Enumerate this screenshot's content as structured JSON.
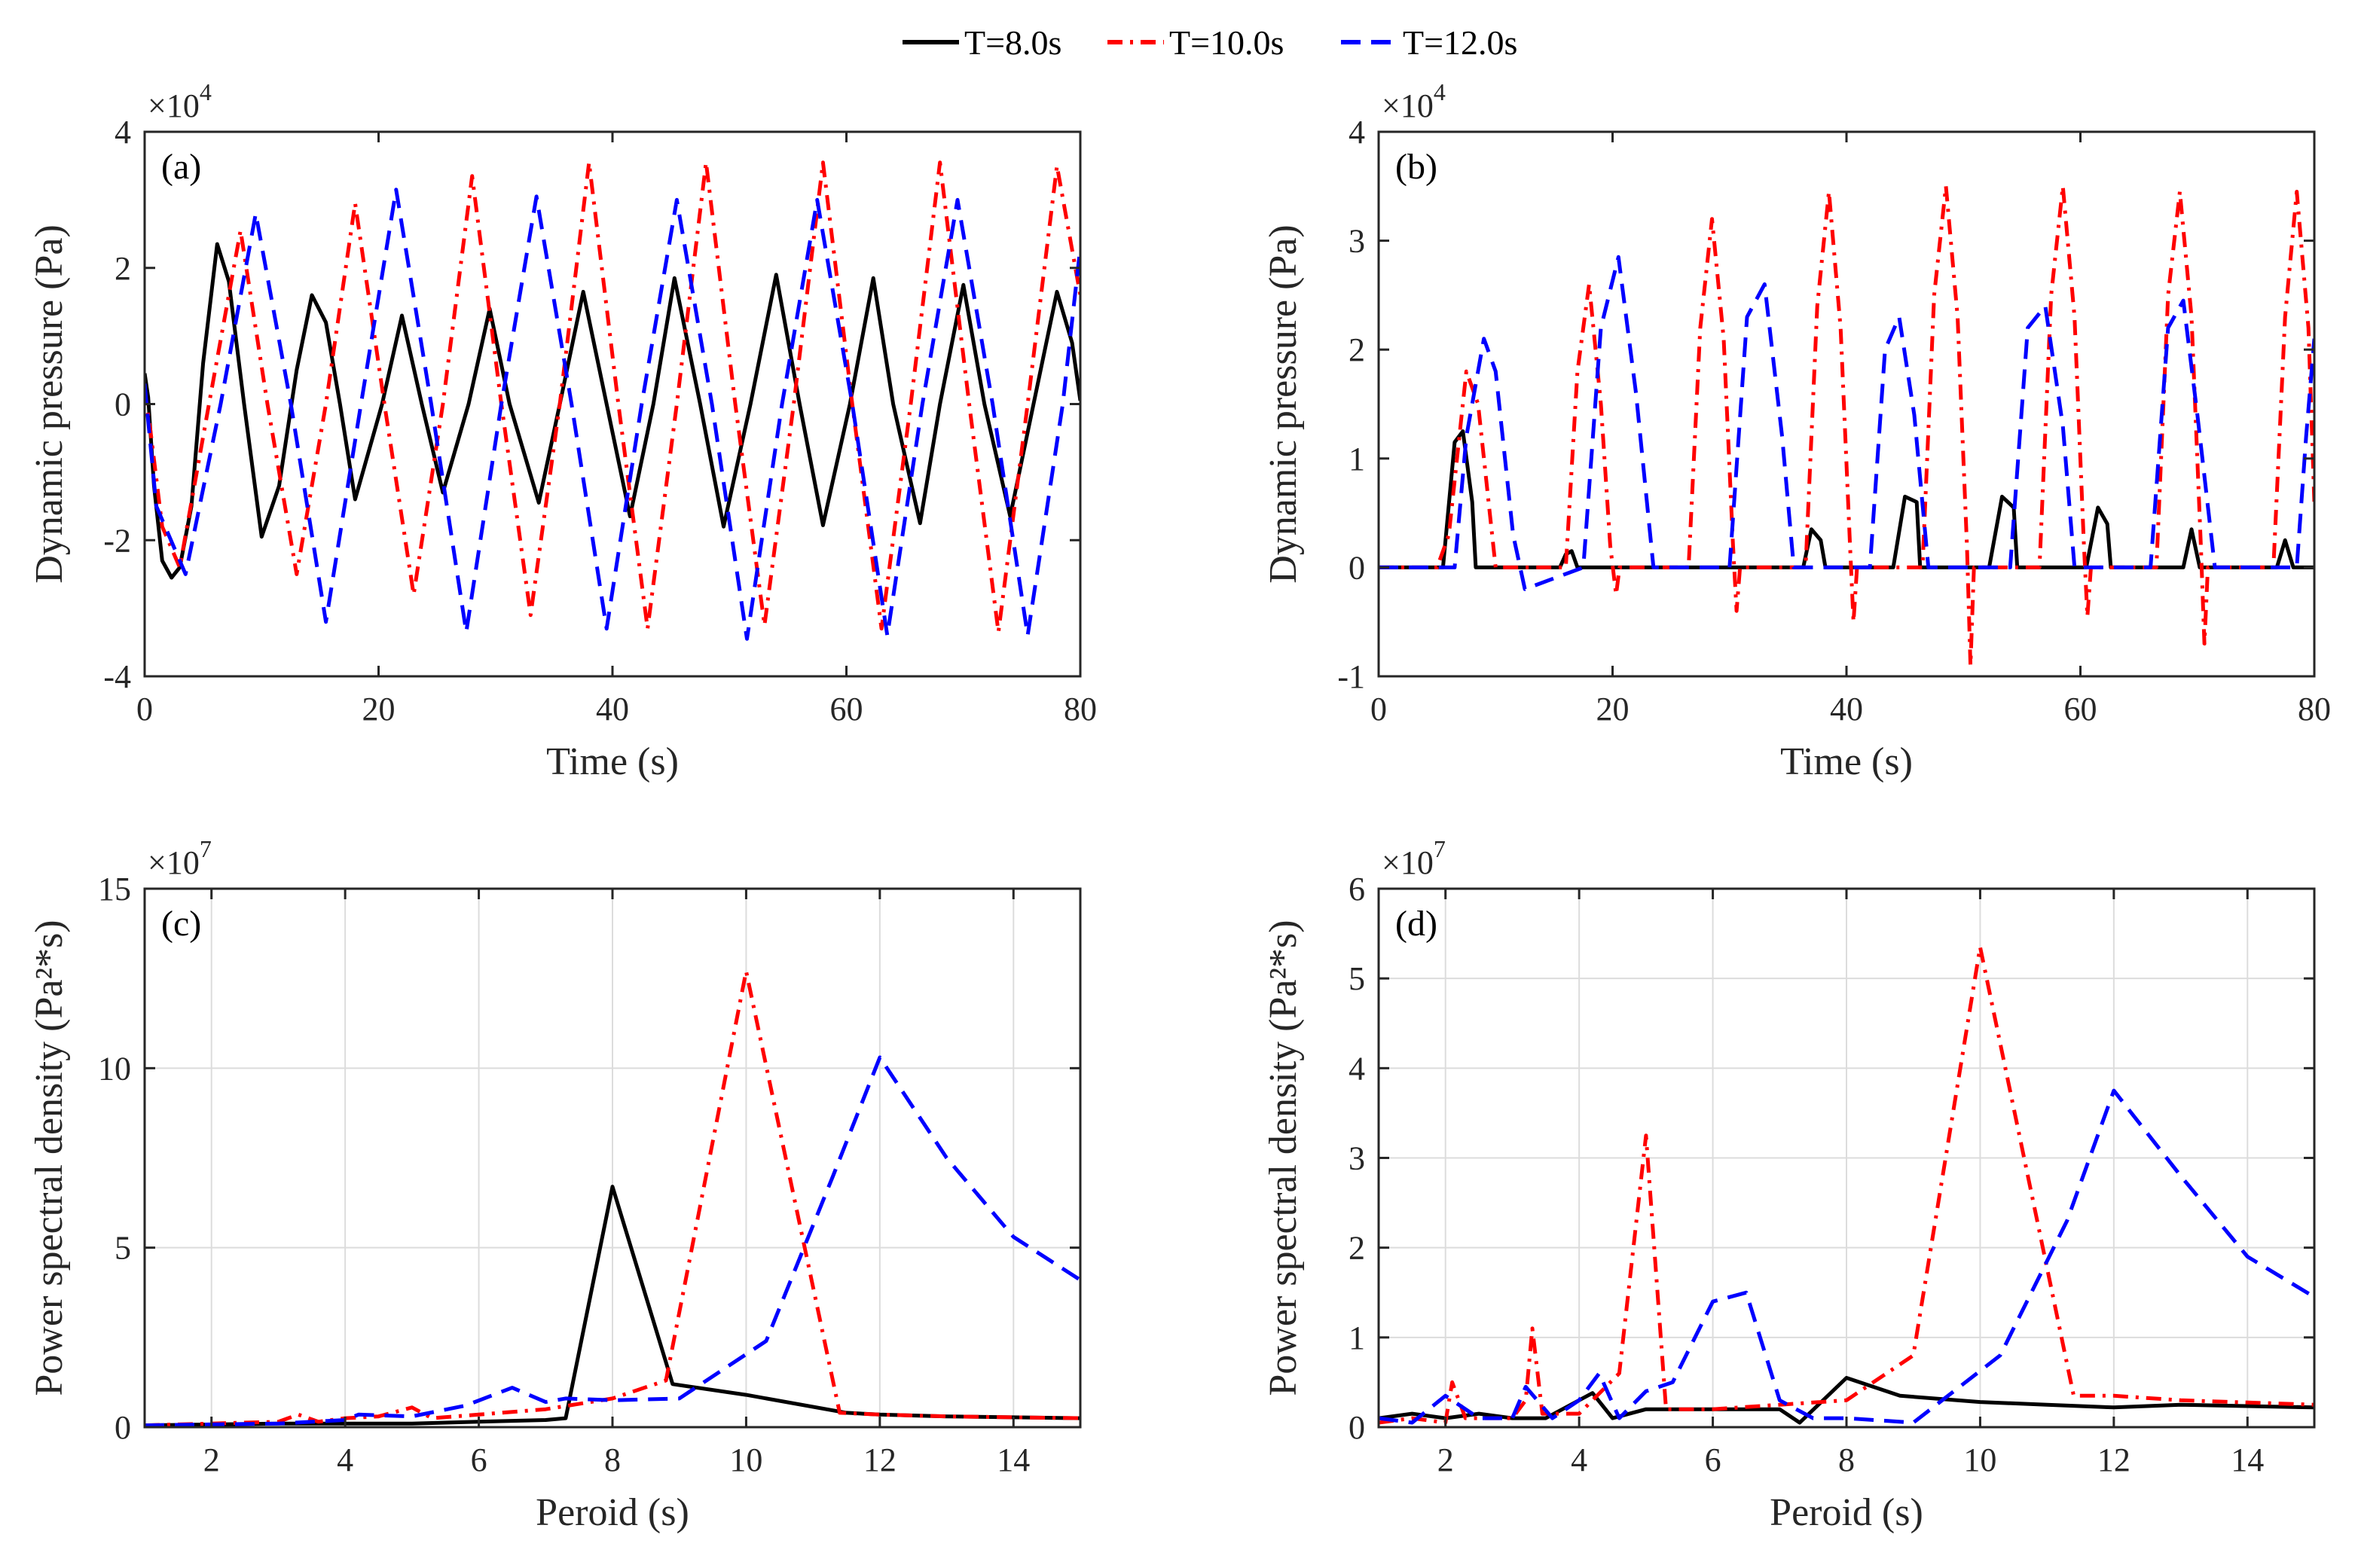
{
  "legend": {
    "items": [
      {
        "label": "T=8.0s",
        "color": "#000000",
        "dash": "solid"
      },
      {
        "label": "T=10.0s",
        "color": "#ff0000",
        "dash": "dashdot"
      },
      {
        "label": "T=12.0s",
        "color": "#0000ff",
        "dash": "dashed"
      }
    ]
  },
  "chart_data": [
    {
      "panel": "(a)",
      "type": "line",
      "xlabel": "Time (s)",
      "ylabel": "Dynamic pressure (Pa)",
      "exponent": "4",
      "xlim": [
        0,
        80
      ],
      "ylim": [
        -4,
        4
      ],
      "xticks": [
        0,
        20,
        40,
        60,
        80
      ],
      "yticks": [
        -4,
        -2,
        0,
        2,
        4
      ],
      "grid": false,
      "series": [
        {
          "name": "T=8.0s",
          "color": "#000000",
          "dash": "solid",
          "x": [
            0,
            0.3,
            0.8,
            1.5,
            2.3,
            3,
            4,
            5,
            6.2,
            7.2,
            8.5,
            10,
            11.5,
            13,
            14.3,
            15.5,
            16.7,
            18,
            20.3,
            22,
            23.7,
            25.5,
            27.7,
            29.5,
            31.2,
            33.7,
            35.5,
            37.5,
            39.5,
            41.5,
            43.5,
            45.3,
            47.5,
            49.5,
            51.8,
            54,
            56,
            58,
            60.3,
            62.3,
            64,
            66.3,
            68,
            70,
            71.8,
            74,
            76,
            78,
            79.3,
            80
          ],
          "y": [
            0.45,
            0.1,
            -1.2,
            -2.3,
            -2.55,
            -2.4,
            -1.5,
            0.6,
            2.35,
            1.8,
            0,
            -1.95,
            -1.2,
            0.5,
            1.6,
            1.2,
            0,
            -1.4,
            0,
            1.3,
            0,
            -1.3,
            0,
            1.4,
            0,
            -1.45,
            0,
            1.65,
            0,
            -1.65,
            0,
            1.85,
            0,
            -1.8,
            0,
            1.9,
            0,
            -1.78,
            0,
            1.85,
            0,
            -1.75,
            0,
            1.75,
            0,
            -1.65,
            0,
            1.65,
            0.9,
            0.05
          ]
        },
        {
          "name": "T=10.0s",
          "color": "#ff0000",
          "dash": "dashdot",
          "x": [
            0,
            0.5,
            1.5,
            3,
            5.5,
            8.2,
            10.5,
            13,
            15.5,
            18,
            20.5,
            23,
            25.5,
            28,
            30.5,
            33,
            35.5,
            38,
            40.5,
            43,
            45.5,
            48,
            50.5,
            53,
            55.5,
            58,
            60.5,
            63,
            65.5,
            68,
            70.5,
            73,
            75.5,
            78,
            80
          ],
          "y": [
            0.2,
            -0.4,
            -1.8,
            -2.4,
            0,
            2.55,
            0,
            -2.5,
            0,
            2.95,
            0,
            -2.8,
            0,
            3.35,
            0,
            -3.1,
            0,
            3.55,
            0,
            -3.3,
            0,
            3.55,
            0,
            -3.25,
            0,
            3.55,
            0,
            -3.3,
            0,
            3.55,
            0,
            -3.35,
            0,
            3.5,
            1.6
          ]
        },
        {
          "name": "T=12.0s",
          "color": "#0000ff",
          "dash": "dashed",
          "x": [
            0,
            1,
            3.5,
            6.5,
            9.5,
            12.5,
            15.5,
            18.5,
            21.5,
            24.5,
            27.5,
            30.5,
            33.5,
            36.5,
            39.5,
            42.5,
            45.5,
            48.5,
            51.5,
            54.5,
            57.5,
            60.5,
            63.5,
            66.5,
            69.5,
            72.5,
            75.5,
            78.5,
            80
          ],
          "y": [
            0.3,
            -1.5,
            -2.5,
            0,
            2.8,
            0,
            -3.2,
            0,
            3.15,
            0,
            -3.35,
            0,
            3.05,
            0,
            -3.3,
            0,
            3.0,
            0,
            -3.45,
            0,
            3.0,
            0,
            -3.4,
            0,
            3.0,
            0,
            -3.4,
            0,
            2.3
          ]
        }
      ]
    },
    {
      "panel": "(b)",
      "type": "line",
      "xlabel": "Time (s)",
      "ylabel": "Dynamic pressure (Pa)",
      "exponent": "4",
      "xlim": [
        0,
        80
      ],
      "ylim": [
        -1,
        4
      ],
      "xticks": [
        0,
        20,
        40,
        60,
        80
      ],
      "yticks": [
        -1,
        0,
        1,
        2,
        3,
        4
      ],
      "grid": false,
      "series": [
        {
          "name": "T=8.0s",
          "color": "#000000",
          "dash": "solid",
          "x": [
            0,
            5.5,
            6.5,
            7.2,
            8,
            8.3,
            15.5,
            16,
            16.5,
            17,
            36.3,
            37,
            37.8,
            38.2,
            44,
            45,
            46,
            46.3,
            52.2,
            53.3,
            54.3,
            54.6,
            60.5,
            61.5,
            62.3,
            62.6,
            68.8,
            69.5,
            70.2,
            76.8,
            77.5,
            78.2,
            80
          ],
          "y": [
            0,
            0,
            1.15,
            1.25,
            0.6,
            0,
            0,
            0.12,
            0.15,
            0,
            0,
            0.35,
            0.25,
            0,
            0,
            0.65,
            0.6,
            0,
            0,
            0.65,
            0.55,
            0,
            0,
            0.55,
            0.4,
            0,
            0,
            0.35,
            0,
            0,
            0.25,
            0,
            0
          ]
        },
        {
          "name": "T=10.0s",
          "color": "#ff0000",
          "dash": "dashdot",
          "x": [
            0,
            5,
            6,
            7.5,
            8.5,
            9.5,
            10,
            16,
            17,
            18,
            19,
            19.8,
            20.3,
            20.6,
            20.9,
            26.5,
            27.5,
            28.5,
            29.5,
            30.3,
            30.6,
            30.9,
            36.5,
            37.5,
            38.5,
            39.5,
            40.3,
            40.6,
            40.9,
            46.5,
            47.5,
            48.5,
            49.5,
            50.3,
            50.6,
            50.9,
            56.5,
            57.5,
            58.5,
            59.5,
            60.3,
            60.6,
            60.9,
            66.5,
            67.5,
            68.5,
            69.5,
            70.3,
            70.6,
            70.9,
            76.5,
            77.5,
            78.5,
            79.5,
            80
          ],
          "y": [
            0,
            0,
            0.3,
            1.8,
            1.5,
            0.5,
            0,
            0,
            1.8,
            2.6,
            1.5,
            0.2,
            -0.25,
            0,
            0,
            0,
            2.2,
            3.2,
            2.1,
            0.2,
            -0.4,
            0,
            0,
            2.4,
            3.45,
            2.2,
            0.2,
            -0.5,
            0,
            0,
            2.5,
            3.5,
            2.3,
            0.2,
            -0.9,
            0,
            0,
            2.5,
            3.5,
            2.3,
            0.2,
            -0.45,
            0,
            0,
            2.5,
            3.45,
            2.3,
            0.2,
            -0.7,
            0,
            0,
            2.3,
            3.45,
            2.2,
            0.6
          ]
        },
        {
          "name": "T=12.0s",
          "color": "#0000ff",
          "dash": "dashed",
          "x": [
            0,
            6.5,
            7.5,
            9,
            10,
            11.5,
            12.5,
            17.5,
            19,
            20.5,
            22,
            23.5,
            30,
            31.5,
            33,
            34.5,
            35.5,
            42,
            43.3,
            44.5,
            45.8,
            47,
            54,
            55.5,
            57,
            58.5,
            59.5,
            66,
            67.5,
            68.8,
            70,
            71.5,
            78.5,
            79.3,
            80
          ],
          "y": [
            0,
            0,
            1.2,
            2.1,
            1.8,
            0.3,
            -0.2,
            0,
            2.2,
            2.85,
            1.6,
            0,
            0,
            2.3,
            2.6,
            1.2,
            0,
            0,
            2.0,
            2.3,
            1.4,
            0,
            0,
            2.2,
            2.4,
            1.3,
            0,
            0,
            2.2,
            2.45,
            1.4,
            0,
            0,
            1.2,
            2.1
          ]
        }
      ]
    },
    {
      "panel": "(c)",
      "type": "line",
      "xlabel": "Peroid (s)",
      "ylabel": "Power spectral density (Pa²*s)",
      "exponent": "7",
      "xlim": [
        1,
        15
      ],
      "ylim": [
        0,
        15
      ],
      "xticks": [
        2,
        4,
        6,
        8,
        10,
        12,
        14
      ],
      "yticks": [
        0,
        5,
        10,
        15
      ],
      "grid": true,
      "series": [
        {
          "name": "T=8.0s",
          "color": "#000000",
          "dash": "solid",
          "x": [
            1,
            3,
            5,
            6,
            7,
            7.3,
            8,
            8.9,
            10,
            11.5,
            12,
            13,
            15
          ],
          "y": [
            0.05,
            0.1,
            0.1,
            0.15,
            0.2,
            0.25,
            6.7,
            1.2,
            0.9,
            0.4,
            0.35,
            0.3,
            0.25
          ]
        },
        {
          "name": "T=10.0s",
          "color": "#ff0000",
          "dash": "dashdot",
          "x": [
            1,
            2,
            3,
            3.3,
            3.6,
            4,
            4.5,
            5,
            5.3,
            6,
            7,
            8,
            8.8,
            10,
            11.4,
            12,
            13,
            15
          ],
          "y": [
            0.05,
            0.1,
            0.15,
            0.35,
            0.15,
            0.25,
            0.3,
            0.55,
            0.25,
            0.35,
            0.5,
            0.8,
            1.3,
            12.7,
            0.4,
            0.35,
            0.3,
            0.25
          ]
        },
        {
          "name": "T=12.0s",
          "color": "#0000ff",
          "dash": "dashed",
          "x": [
            1,
            3,
            4,
            4.2,
            5,
            5.8,
            6.5,
            7,
            7.3,
            8,
            9,
            10.3,
            11.3,
            12,
            13,
            14,
            15
          ],
          "y": [
            0.05,
            0.1,
            0.2,
            0.35,
            0.3,
            0.6,
            1.1,
            0.7,
            0.8,
            0.75,
            0.8,
            2.4,
            7.0,
            10.3,
            7.5,
            5.3,
            4.1
          ]
        }
      ]
    },
    {
      "panel": "(d)",
      "type": "line",
      "xlabel": "Peroid (s)",
      "ylabel": "Power spectral density (Pa²*s)",
      "exponent": "7",
      "xlim": [
        1,
        15
      ],
      "ylim": [
        0,
        6
      ],
      "xticks": [
        2,
        4,
        6,
        8,
        10,
        12,
        14
      ],
      "yticks": [
        0,
        1,
        2,
        3,
        4,
        5,
        6
      ],
      "grid": true,
      "series": [
        {
          "name": "T=8.0s",
          "color": "#000000",
          "dash": "solid",
          "x": [
            1,
            1.5,
            2,
            2.5,
            3,
            3.5,
            4.2,
            4.5,
            5,
            5.5,
            6,
            7,
            7.3,
            8,
            8.8,
            10,
            11,
            12,
            13,
            15
          ],
          "y": [
            0.1,
            0.15,
            0.1,
            0.15,
            0.1,
            0.1,
            0.38,
            0.1,
            0.2,
            0.2,
            0.2,
            0.2,
            0.05,
            0.55,
            0.35,
            0.28,
            0.25,
            0.22,
            0.25,
            0.22
          ]
        },
        {
          "name": "T=10.0s",
          "color": "#ff0000",
          "dash": "dashdot",
          "x": [
            1,
            1.5,
            2,
            2.1,
            2.3,
            2.6,
            3,
            3.2,
            3.3,
            3.45,
            4,
            4.6,
            5,
            5.3,
            6,
            7,
            8,
            9,
            10,
            11.4,
            12,
            13,
            15
          ],
          "y": [
            0.05,
            0.1,
            0.05,
            0.5,
            0.1,
            0.1,
            0.1,
            0.3,
            1.1,
            0.15,
            0.15,
            0.6,
            3.25,
            0.2,
            0.2,
            0.25,
            0.3,
            0.8,
            5.35,
            0.35,
            0.35,
            0.3,
            0.25
          ]
        },
        {
          "name": "T=12.0s",
          "color": "#0000ff",
          "dash": "dashed",
          "x": [
            1,
            1.5,
            2,
            2.5,
            3,
            3.2,
            3.6,
            4,
            4.3,
            4.6,
            5,
            5.4,
            6,
            6.5,
            7,
            7.5,
            8,
            9,
            10.3,
            11.3,
            12,
            13,
            14,
            15
          ],
          "y": [
            0.1,
            0.05,
            0.35,
            0.1,
            0.1,
            0.45,
            0.1,
            0.3,
            0.6,
            0.1,
            0.4,
            0.5,
            1.4,
            1.5,
            0.3,
            0.1,
            0.1,
            0.05,
            0.8,
            2.3,
            3.75,
            2.8,
            1.9,
            1.45
          ]
        }
      ]
    }
  ]
}
